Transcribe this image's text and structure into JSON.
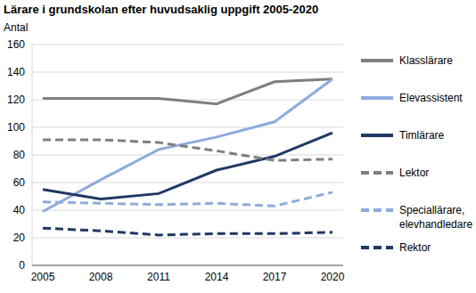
{
  "chart_data": {
    "type": "line",
    "title": "Lärare i grundskolan efter huvudsaklig uppgift 2005-2020",
    "y_label": "Antal",
    "categories": [
      "2005",
      "2008",
      "2011",
      "2014",
      "2017",
      "2020"
    ],
    "series": [
      {
        "name": "Klasslärare",
        "color": "#7f7f7f",
        "line_style": "solid",
        "values": [
          121,
          121,
          121,
          117,
          133,
          135
        ]
      },
      {
        "name": "Elevassistent",
        "color": "#8faadc",
        "line_style": "solid",
        "values": [
          39,
          62,
          84,
          93,
          104,
          135
        ]
      },
      {
        "name": "Timlärare",
        "color": "#203864",
        "line_style": "solid",
        "values": [
          55,
          48,
          52,
          69,
          79,
          96
        ]
      },
      {
        "name": "Lektor",
        "color": "#7f7f7f",
        "line_style": "dashed",
        "values": [
          91,
          91,
          89,
          83,
          76,
          77
        ]
      },
      {
        "name": "Speciallärare, elevhandledare",
        "color": "#8faadc",
        "line_style": "dashed",
        "values": [
          46,
          45,
          44,
          45,
          43,
          53
        ]
      },
      {
        "name": "Rektor",
        "color": "#203864",
        "line_style": "dashed",
        "values": [
          27,
          25,
          22,
          23,
          23,
          24
        ]
      }
    ],
    "ylim": [
      0,
      160
    ],
    "yticks": [
      0,
      20,
      40,
      60,
      80,
      100,
      120,
      140,
      160
    ],
    "grid": true,
    "legend": "right"
  }
}
